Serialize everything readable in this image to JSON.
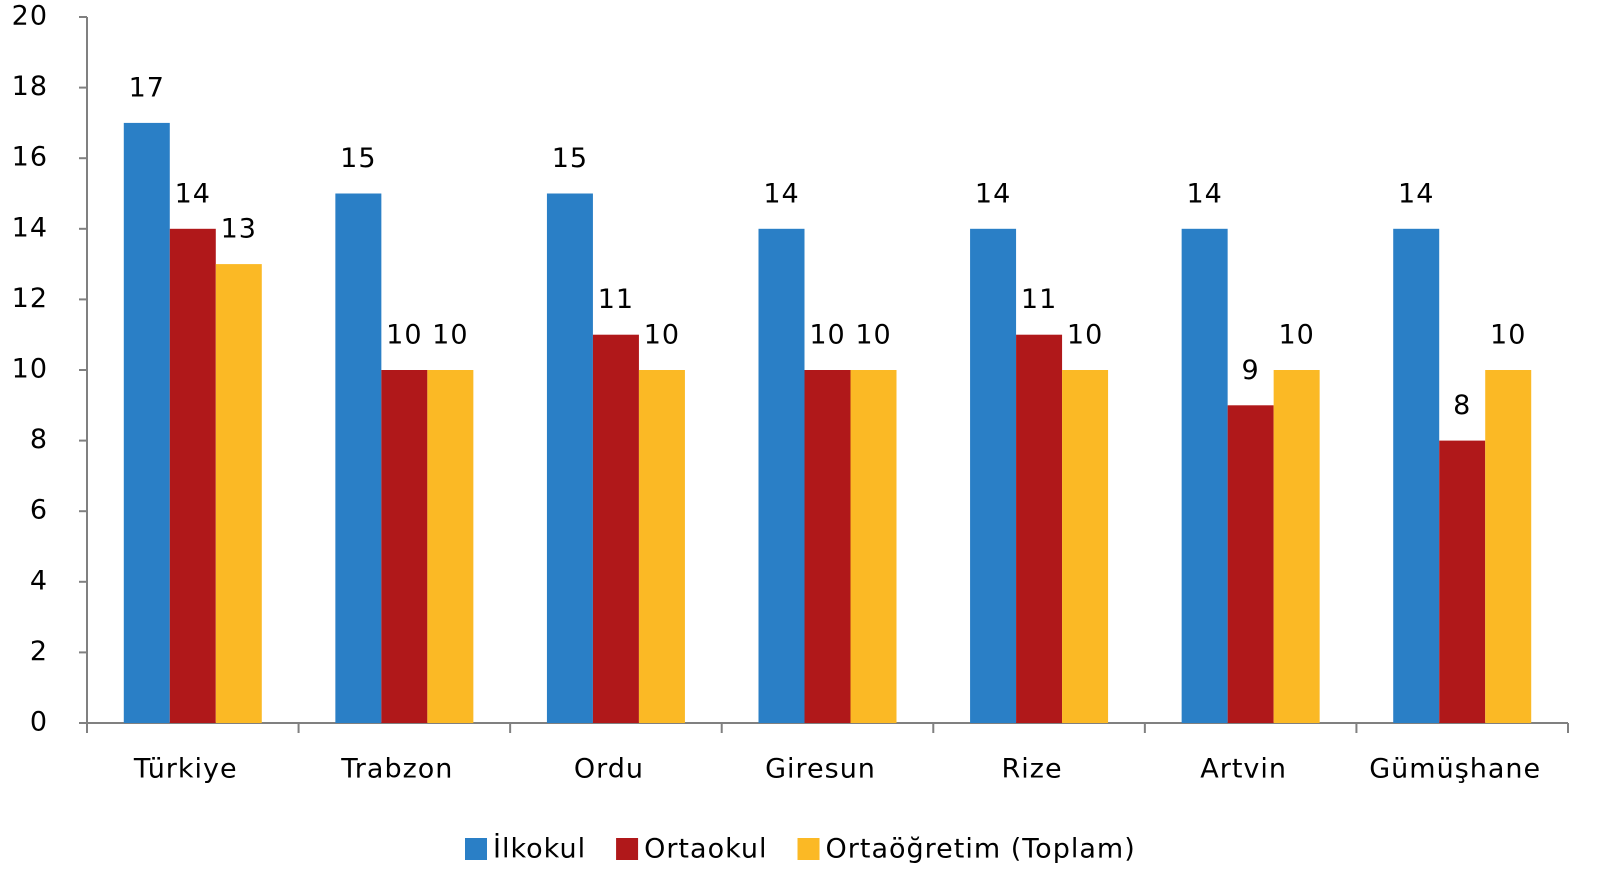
{
  "chart_data": {
    "type": "bar",
    "categories": [
      "Türkiye",
      "Trabzon",
      "Ordu",
      "Giresun",
      "Rize",
      "Artvin",
      "Gümüşhane"
    ],
    "series": [
      {
        "name": "İlkokul",
        "color": "#2a7fc6",
        "values": [
          17,
          15,
          15,
          14,
          14,
          14,
          14
        ]
      },
      {
        "name": "Ortaokul",
        "color": "#b0181a",
        "values": [
          14,
          10,
          11,
          10,
          11,
          9,
          8
        ]
      },
      {
        "name": "Ortaöğretim (Toplam)",
        "color": "#fbb925",
        "values": [
          13,
          10,
          10,
          10,
          10,
          10,
          10
        ]
      }
    ],
    "ylim": [
      0,
      20
    ],
    "yticks": [
      0,
      2,
      4,
      6,
      8,
      10,
      12,
      14,
      16,
      18,
      20
    ],
    "grid": false,
    "legend": "bottom"
  }
}
